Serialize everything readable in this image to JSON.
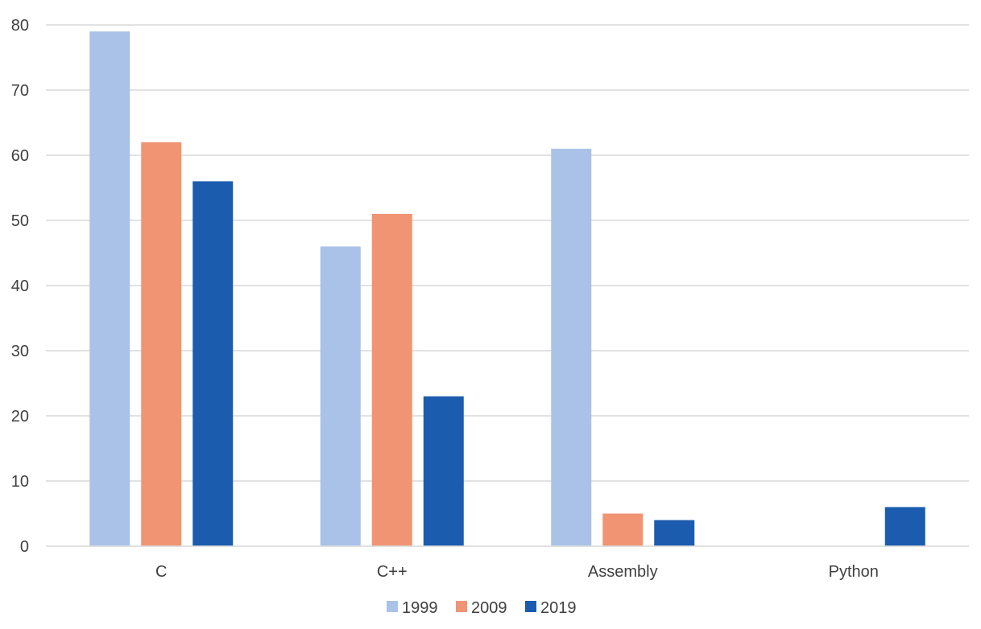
{
  "chart_data": {
    "type": "bar",
    "categories": [
      "C",
      "C++",
      "Assembly",
      "Python"
    ],
    "series": [
      {
        "name": "1999",
        "color": "#aac2e7",
        "values": [
          79,
          46,
          61,
          0
        ]
      },
      {
        "name": "2009",
        "color": "#f09474",
        "values": [
          62,
          51,
          5,
          0
        ]
      },
      {
        "name": "2019",
        "color": "#1b5cae",
        "values": [
          56,
          23,
          4,
          6
        ]
      }
    ],
    "ylim": [
      0,
      80
    ],
    "yticks": [
      0,
      10,
      20,
      30,
      40,
      50,
      60,
      70,
      80
    ],
    "ytick_labels": [
      "0",
      "10",
      "20",
      "30",
      "40",
      "50",
      "60",
      "70",
      "80"
    ],
    "grid": true,
    "legend_position": "bottom",
    "title": "",
    "xlabel": "",
    "ylabel": ""
  }
}
